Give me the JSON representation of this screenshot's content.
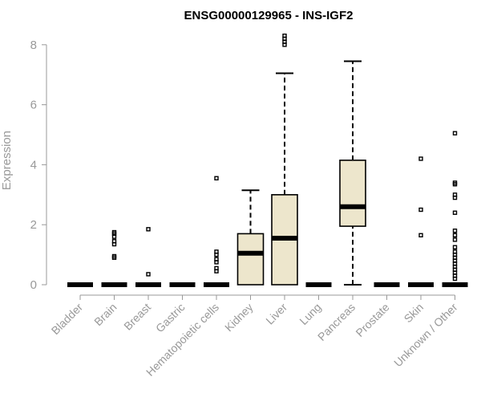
{
  "chart_data": {
    "type": "boxplot",
    "title": "ENSG00000129965 - INS-IGF2",
    "xlabel": "",
    "ylabel": "Expression",
    "ylim": [
      0,
      8.4
    ],
    "yticks": [
      0,
      2,
      4,
      6,
      8
    ],
    "grid": false,
    "box_fill": "#ede6cc",
    "categories": [
      "Bladder",
      "Brain",
      "Breast",
      "Gastric",
      "Hematopoietic cells",
      "Kidney",
      "Liver",
      "Lung",
      "Pancreas",
      "Prostate",
      "Skin",
      "Unknown / Other"
    ],
    "boxes": [
      {
        "min": 0,
        "q1": 0,
        "median": 0,
        "q3": 0,
        "max": 0,
        "outliers": []
      },
      {
        "min": 0,
        "q1": 0,
        "median": 0,
        "q3": 0,
        "max": 0,
        "outliers": [
          0.9,
          0.95,
          1.35,
          1.45,
          1.6,
          1.7,
          1.75
        ]
      },
      {
        "min": 0,
        "q1": 0,
        "median": 0,
        "q3": 0,
        "max": 0,
        "outliers": [
          0.35,
          1.85
        ]
      },
      {
        "min": 0,
        "q1": 0,
        "median": 0,
        "q3": 0,
        "max": 0,
        "outliers": []
      },
      {
        "min": 0,
        "q1": 0,
        "median": 0,
        "q3": 0,
        "max": 0,
        "outliers": [
          0.45,
          0.55,
          0.75,
          0.85,
          1.0,
          1.1,
          3.55
        ]
      },
      {
        "min": 0,
        "q1": 0,
        "median": 1.05,
        "q3": 1.7,
        "max": 3.15,
        "outliers": []
      },
      {
        "min": 0,
        "q1": 0,
        "median": 1.55,
        "q3": 3.0,
        "max": 7.05,
        "outliers": [
          8.0,
          8.1,
          8.2,
          8.3
        ]
      },
      {
        "min": 0,
        "q1": 0,
        "median": 0,
        "q3": 0,
        "max": 0,
        "outliers": []
      },
      {
        "min": 0,
        "q1": 1.95,
        "median": 2.6,
        "q3": 4.15,
        "max": 7.45,
        "outliers": []
      },
      {
        "min": 0,
        "q1": 0,
        "median": 0,
        "q3": 0,
        "max": 0,
        "outliers": []
      },
      {
        "min": 0,
        "q1": 0,
        "median": 0,
        "q3": 0,
        "max": 0,
        "outliers": [
          1.65,
          2.5,
          4.2
        ]
      },
      {
        "min": 0,
        "q1": 0,
        "median": 0,
        "q3": 0,
        "max": 0,
        "outliers": [
          0.2,
          0.3,
          0.4,
          0.5,
          0.6,
          0.7,
          0.8,
          0.9,
          1.0,
          1.1,
          1.25,
          1.5,
          1.65,
          1.8,
          2.4,
          2.9,
          3.0,
          3.35,
          3.4,
          5.05
        ]
      }
    ]
  }
}
